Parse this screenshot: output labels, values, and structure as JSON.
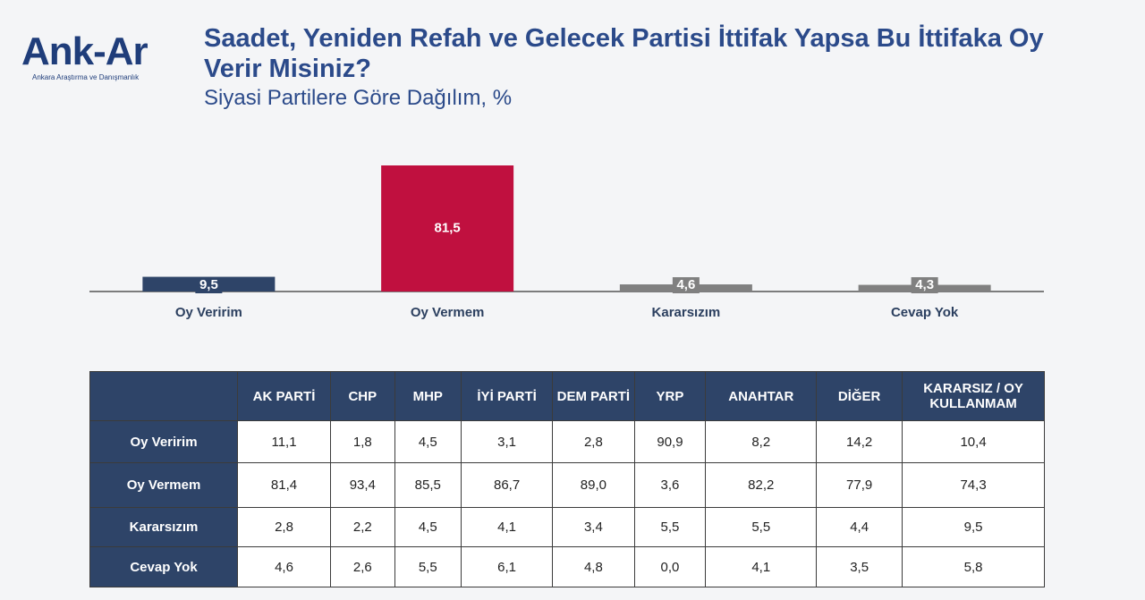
{
  "logo": {
    "name": "Ank-Ar",
    "tagline": "Ankara Araştırma ve Danışmanlık"
  },
  "chart_data": {
    "type": "bar",
    "title": "Saadet, Yeniden Refah ve Gelecek Partisi İttifak Yapsa Bu İttifaka Oy Verir Misiniz?",
    "subtitle": "Siyasi Partilere Göre Dağılım, %",
    "categories": [
      "Oy Veririm",
      "Oy Vermem",
      "Kararsızım",
      "Cevap Yok"
    ],
    "values": [
      9.5,
      81.5,
      4.6,
      4.3
    ],
    "value_labels": [
      "9,5",
      "81,5",
      "4,6",
      "4,3"
    ],
    "colors": [
      "#2e4468",
      "#c0103f",
      "#808080",
      "#808080"
    ]
  },
  "table": {
    "columns": [
      "AK PARTİ",
      "CHP",
      "MHP",
      "İYİ PARTİ",
      "DEM PARTİ",
      "YRP",
      "ANAHTAR",
      "DİĞER",
      "KARARSIZ / OY KULLANMAM"
    ],
    "rows": [
      {
        "label": "Oy Veririm",
        "cells": [
          "11,1",
          "1,8",
          "4,5",
          "3,1",
          "2,8",
          "90,9",
          "8,2",
          "14,2",
          "10,4"
        ]
      },
      {
        "label": "Oy Vermem",
        "cells": [
          "81,4",
          "93,4",
          "85,5",
          "86,7",
          "89,0",
          "3,6",
          "82,2",
          "77,9",
          "74,3"
        ]
      },
      {
        "label": "Kararsızım",
        "cells": [
          "2,8",
          "2,2",
          "4,5",
          "4,1",
          "3,4",
          "5,5",
          "5,5",
          "4,4",
          "9,5"
        ]
      },
      {
        "label": "Cevap Yok",
        "cells": [
          "4,6",
          "2,6",
          "5,5",
          "6,1",
          "4,8",
          "0,0",
          "4,1",
          "3,5",
          "5,8"
        ]
      }
    ]
  }
}
